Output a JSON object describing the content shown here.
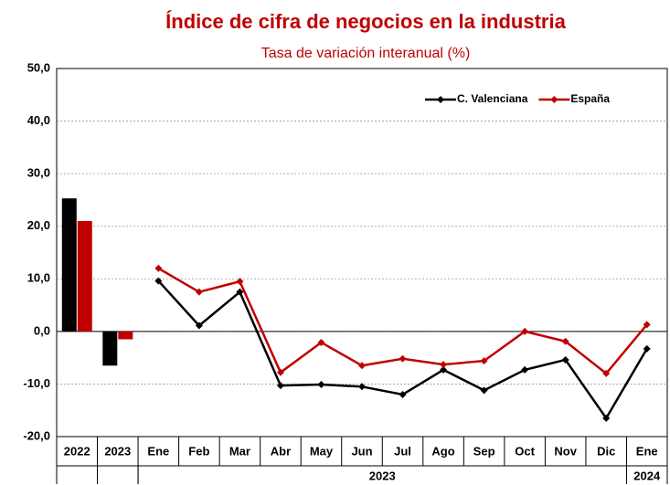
{
  "chart_data": {
    "type": "combo",
    "title": "Índice de cifra de negocios en la industria",
    "subtitle": "Tasa de variación interanual (%)",
    "annual_categories": [
      "2022",
      "2023"
    ],
    "monthly_categories": [
      "Ene",
      "Feb",
      "Mar",
      "Abr",
      "May",
      "Jun",
      "Jul",
      "Ago",
      "Sep",
      "Oct",
      "Nov",
      "Dic",
      "Ene"
    ],
    "monthly_years": [
      "2023",
      "2023",
      "2023",
      "2023",
      "2023",
      "2023",
      "2023",
      "2023",
      "2023",
      "2023",
      "2023",
      "2023",
      "2024"
    ],
    "series": [
      {
        "name": "C. Valenciana",
        "color": "#000000",
        "annual": [
          25.3,
          -6.5
        ],
        "monthly": [
          9.6,
          1.1,
          7.5,
          -10.3,
          -10.1,
          -10.5,
          -12.0,
          -7.3,
          -11.2,
          -7.3,
          -5.4,
          -16.5,
          -3.3
        ]
      },
      {
        "name": "España",
        "color": "#c00000",
        "annual": [
          21.0,
          -1.5
        ],
        "monthly": [
          12.0,
          7.5,
          9.5,
          -7.8,
          -2.1,
          -6.5,
          -5.2,
          -6.3,
          -5.6,
          0.0,
          -1.9,
          -8.0,
          1.3
        ]
      }
    ],
    "ylim": [
      -20,
      50
    ],
    "yticks": [
      {
        "value": -20,
        "label": "-20,0"
      },
      {
        "value": -10,
        "label": "-10,0"
      },
      {
        "value": 0,
        "label": "0,0"
      },
      {
        "value": 10,
        "label": "10,0"
      },
      {
        "value": 20,
        "label": "20,0"
      },
      {
        "value": 30,
        "label": "30,0"
      },
      {
        "value": 40,
        "label": "40,0"
      },
      {
        "value": 50,
        "label": "50,0"
      }
    ],
    "grid": true,
    "legend": "upper right"
  }
}
